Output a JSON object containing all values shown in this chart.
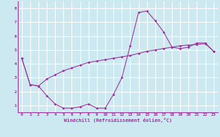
{
  "xlabel": "Windchill (Refroidissement éolien,°C)",
  "bg_color": "#cce8f0",
  "grid_color": "#ffffff",
  "line_color": "#993399",
  "xlim": [
    -0.5,
    23.5
  ],
  "ylim": [
    0.5,
    8.5
  ],
  "xticks": [
    0,
    1,
    2,
    3,
    4,
    5,
    6,
    7,
    8,
    9,
    10,
    11,
    12,
    13,
    14,
    15,
    16,
    17,
    18,
    19,
    20,
    21,
    22,
    23
  ],
  "yticks": [
    1,
    2,
    3,
    4,
    5,
    6,
    7,
    8
  ],
  "line1_x": [
    0,
    1,
    2,
    3,
    4,
    5,
    6,
    7,
    8,
    9,
    10,
    11,
    12,
    13,
    14,
    15,
    16,
    17,
    18,
    19,
    20,
    21,
    22,
    23
  ],
  "line1_y": [
    4.4,
    2.5,
    2.4,
    1.7,
    1.1,
    0.8,
    0.8,
    0.9,
    1.1,
    0.8,
    0.8,
    1.8,
    3.0,
    5.3,
    7.7,
    7.8,
    7.1,
    6.3,
    5.2,
    5.1,
    5.2,
    5.5,
    5.5,
    4.9
  ],
  "line2_x": [
    0,
    1,
    2,
    3,
    4,
    5,
    6,
    7,
    8,
    9,
    10,
    11,
    12,
    13,
    14,
    15,
    16,
    17,
    18,
    19,
    20,
    21,
    22,
    23
  ],
  "line2_y": [
    4.4,
    2.5,
    2.4,
    2.9,
    3.2,
    3.5,
    3.7,
    3.9,
    4.1,
    4.2,
    4.3,
    4.4,
    4.5,
    4.6,
    4.75,
    4.9,
    5.0,
    5.1,
    5.2,
    5.3,
    5.35,
    5.4,
    5.45,
    4.9
  ]
}
